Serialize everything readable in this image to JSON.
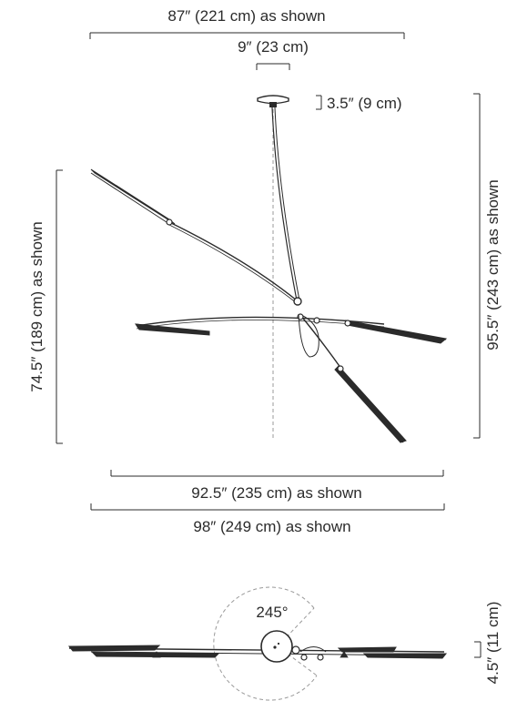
{
  "dimensions": {
    "top_width": "87″ (221 cm) as shown",
    "canopy_width": "9″ (23 cm)",
    "canopy_height": "3.5″ (9 cm)",
    "left_height": "74.5″ (189 cm) as shown",
    "right_height": "95.5″ (243 cm) as shown",
    "bottom_width_inner": "92.5″ (235 cm) as shown",
    "bottom_width_outer": "98″ (249 cm) as shown",
    "rotation_angle": "245°",
    "plan_height": "4.5″ (11 cm)"
  },
  "colors": {
    "line": "#2b2b2b",
    "dashed": "#999999"
  }
}
